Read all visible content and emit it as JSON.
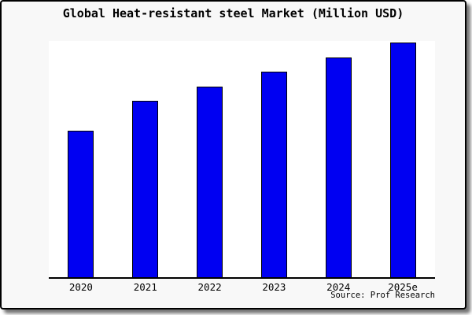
{
  "chart_data": {
    "type": "bar",
    "title": "Global Heat-resistant steel Market (Million USD)",
    "categories": [
      "2020",
      "2021",
      "2022",
      "2023",
      "2024",
      "2025e"
    ],
    "values": [
      100,
      120,
      130,
      140,
      150,
      160
    ],
    "value_unit": "relative index estimated from bar heights (no y-axis tick labels shown; 2020 = 100)",
    "xlabel": "",
    "ylabel": "",
    "ylim": [
      0,
      161
    ],
    "grid": false,
    "legend": false,
    "y_axis_visible": false,
    "bar_color": "#0000f2",
    "bar_border_color": "#000000"
  },
  "source_note": "Source: Prof Research",
  "colors": {
    "card_background": "#f8f8f8",
    "plot_background": "#ffffff",
    "axis": "#000000",
    "frame_border": "#000000",
    "text": "#000000"
  }
}
